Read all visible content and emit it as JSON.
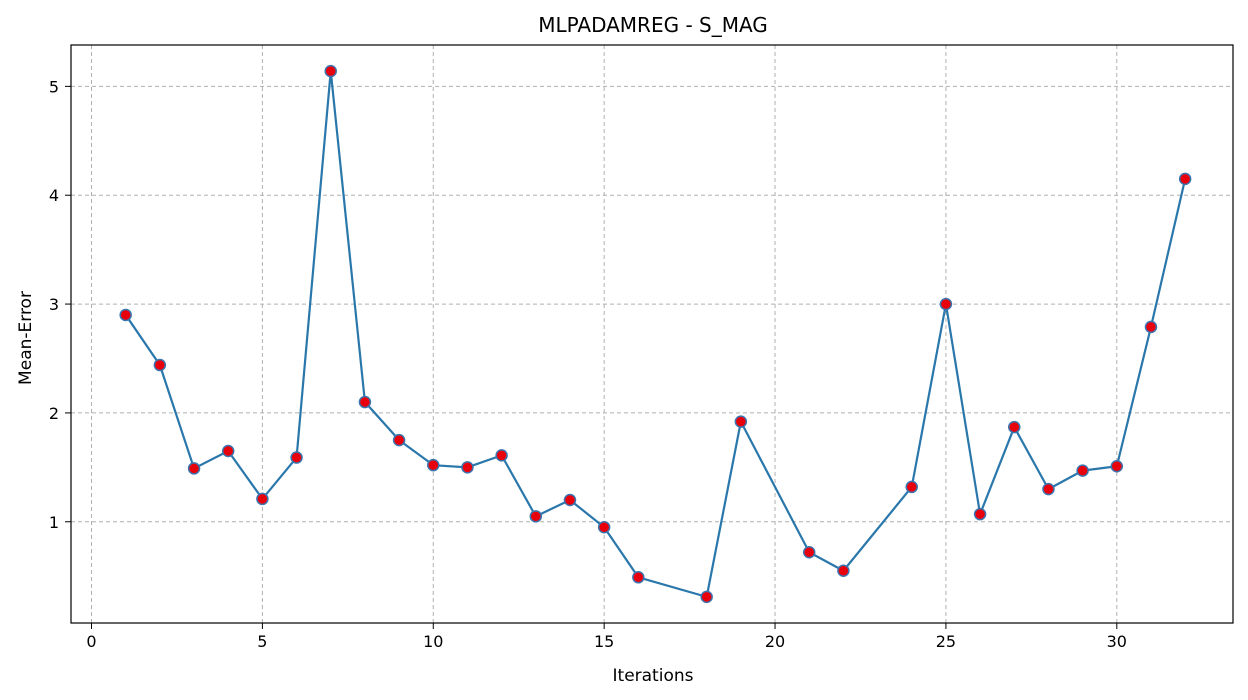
{
  "chart_data": {
    "type": "line",
    "title": "MLPADAMREG - S_MAG",
    "xlabel": "Iterations",
    "ylabel": "Mean-Error",
    "xlim": [
      -0.6,
      33.4
    ],
    "ylim": [
      0.07,
      5.38
    ],
    "xticks": [
      0,
      5,
      10,
      15,
      20,
      25,
      30
    ],
    "yticks": [
      1,
      2,
      3,
      4,
      5
    ],
    "grid": true,
    "series": [
      {
        "x": [
          1,
          2,
          3,
          4,
          5,
          6,
          7,
          8,
          9,
          10,
          11,
          12,
          13,
          14,
          15,
          16,
          18,
          19,
          21,
          22,
          24,
          25,
          26,
          27,
          28,
          29,
          30,
          31,
          32
        ],
        "values": [
          2.9,
          2.44,
          1.49,
          1.65,
          1.21,
          1.59,
          5.14,
          2.1,
          1.75,
          1.52,
          1.5,
          1.61,
          1.05,
          1.2,
          0.95,
          0.49,
          0.31,
          1.92,
          0.72,
          0.55,
          1.32,
          3.0,
          1.07,
          1.87,
          1.3,
          1.47,
          1.51,
          2.79,
          4.15
        ]
      }
    ],
    "colors": {
      "line": "#2a77ab",
      "marker_fill": "#e8000b",
      "marker_edge": "#3b75af",
      "grid": "#b0b0b0"
    }
  }
}
